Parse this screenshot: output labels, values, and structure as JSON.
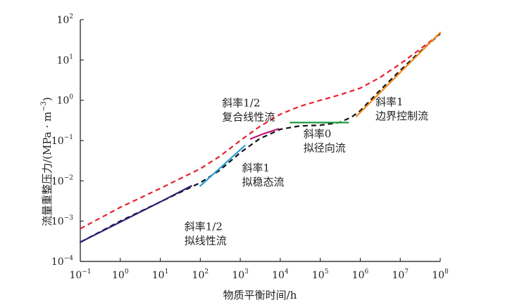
{
  "chart_data": {
    "type": "line",
    "xlabel": "物质平衡时间/h",
    "ylabel_main": "流量重整压力/(MPa · m",
    "ylabel_sup": "−3",
    "ylabel_close": ")",
    "x_scale": "log",
    "y_scale": "log",
    "xlim": [
      0.1,
      100000000
    ],
    "ylim": [
      0.0001,
      100
    ],
    "grid": false,
    "x_ticks": [
      {
        "base": "10",
        "exp": "−1",
        "value": 0.1
      },
      {
        "base": "10",
        "exp": "0",
        "value": 1
      },
      {
        "base": "10",
        "exp": "1",
        "value": 10
      },
      {
        "base": "10",
        "exp": "2",
        "value": 100
      },
      {
        "base": "10",
        "exp": "3",
        "value": 1000
      },
      {
        "base": "10",
        "exp": "4",
        "value": 10000
      },
      {
        "base": "10",
        "exp": "5",
        "value": 100000
      },
      {
        "base": "10",
        "exp": "6",
        "value": 1000000
      },
      {
        "base": "10",
        "exp": "7",
        "value": 10000000
      },
      {
        "base": "10",
        "exp": "8",
        "value": 100000000
      }
    ],
    "y_ticks": [
      {
        "base": "10",
        "exp": "−4",
        "value": 0.0001
      },
      {
        "base": "10",
        "exp": "−3",
        "value": 0.001
      },
      {
        "base": "10",
        "exp": "−2",
        "value": 0.01
      },
      {
        "base": "10",
        "exp": "−1",
        "value": 0.1
      },
      {
        "base": "10",
        "exp": "0",
        "value": 1
      },
      {
        "base": "10",
        "exp": "1",
        "value": 10
      },
      {
        "base": "10",
        "exp": "2",
        "value": 100
      }
    ],
    "series": [
      {
        "color": "#e8202a",
        "dash": true,
        "width": 2.2,
        "x": [
          0.1,
          1,
          10,
          100,
          300,
          1000,
          3000,
          10000,
          30000,
          100000,
          300000,
          1000000,
          3000000,
          10000000,
          30000000,
          100000000
        ],
        "y": [
          0.00065,
          0.0022,
          0.0065,
          0.02,
          0.04,
          0.1,
          0.22,
          0.45,
          0.7,
          1.0,
          1.35,
          2.0,
          3.6,
          8.0,
          18.0,
          45.0
        ]
      },
      {
        "color": "#111111",
        "dash": true,
        "width": 2.2,
        "x": [
          0.1,
          1,
          10,
          100,
          300,
          1000,
          3000,
          10000,
          30000,
          100000,
          300000,
          600000,
          1000000,
          3000000,
          10000000,
          30000000,
          100000000
        ],
        "y": [
          0.0003,
          0.001,
          0.003,
          0.009,
          0.018,
          0.05,
          0.11,
          0.19,
          0.23,
          0.24,
          0.28,
          0.38,
          0.55,
          1.7,
          5.5,
          15.5,
          45.0
        ]
      },
      {
        "color": "#2a2070",
        "dash": false,
        "width": 2.2,
        "x": [
          0.1,
          1,
          10,
          60
        ],
        "y": [
          0.0003,
          0.00095,
          0.003,
          0.0075
        ]
      },
      {
        "color": "#2aa0d8",
        "dash": false,
        "width": 2.2,
        "x": [
          100,
          1300
        ],
        "y": [
          0.0075,
          0.075
        ]
      },
      {
        "color": "#c0157a",
        "dash": false,
        "width": 2.2,
        "x": [
          1800,
          4000,
          9000
        ],
        "y": [
          0.11,
          0.15,
          0.195
        ]
      },
      {
        "color": "#1e9a3c",
        "dash": false,
        "width": 2.2,
        "x": [
          18000,
          500000
        ],
        "y": [
          0.28,
          0.28
        ]
      },
      {
        "color": "#f08a1c",
        "dash": false,
        "width": 2.2,
        "x": [
          800000,
          100000000
        ],
        "y": [
          0.4,
          48.0
        ]
      }
    ],
    "annotations": [
      {
        "line1": "斜率1/2",
        "line2": "拟线性流",
        "x": 40,
        "y": 0.0006
      },
      {
        "line1": "斜率1",
        "line2": "拟稳态流",
        "x": 1100,
        "y": 0.017
      },
      {
        "line1": "斜率1/2",
        "line2": "复合线性流",
        "x": 350,
        "y": 0.7
      },
      {
        "line1": "斜率0",
        "line2": "拟径向流",
        "x": 38000,
        "y": 0.12
      },
      {
        "line1": "斜率1",
        "line2": "边界控制流",
        "x": 2400000,
        "y": 0.75
      }
    ]
  }
}
